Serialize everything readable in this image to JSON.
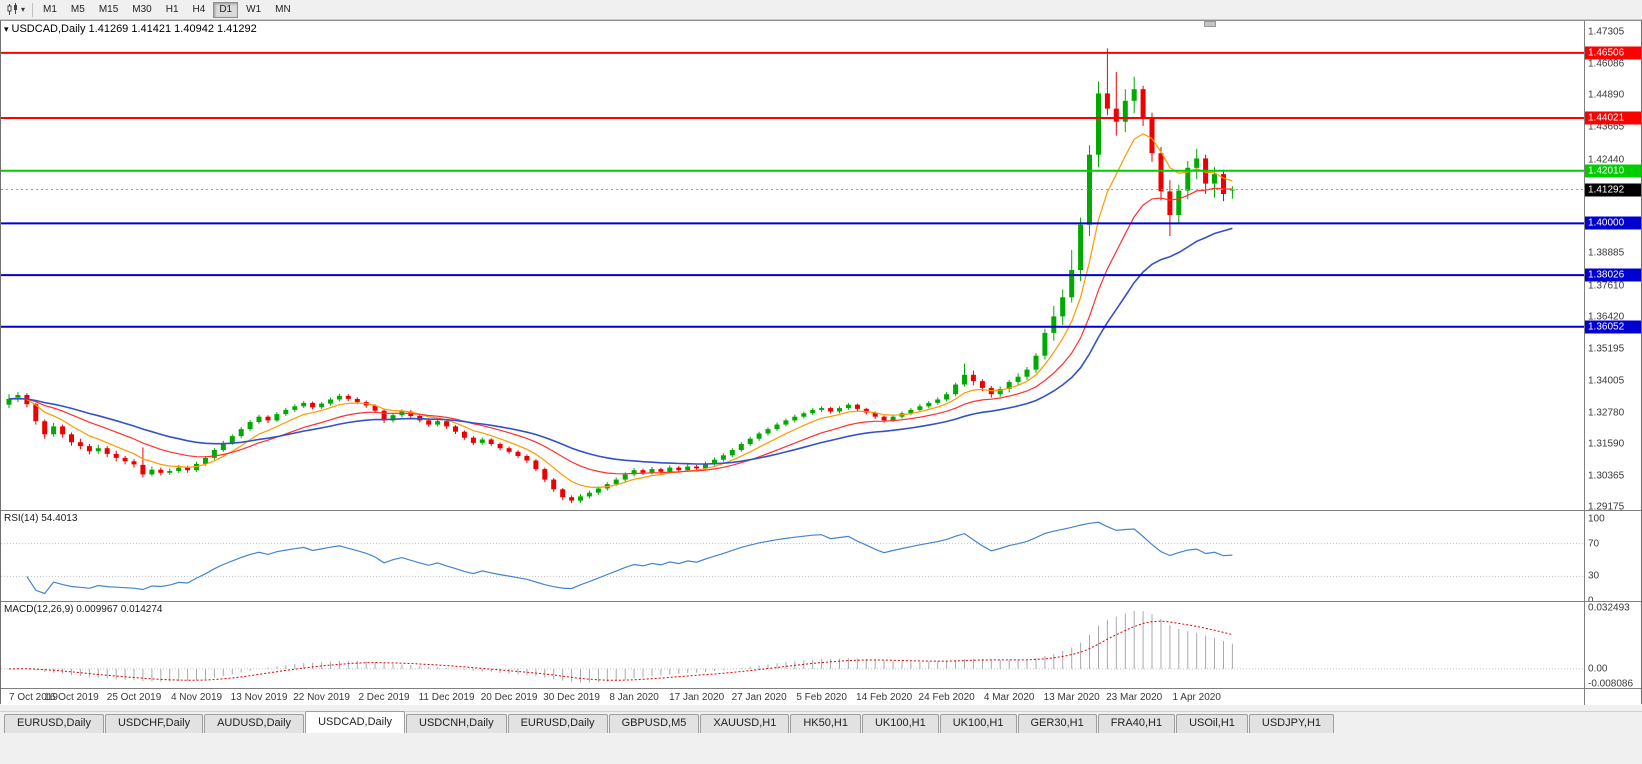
{
  "toolbar": {
    "timeframes": [
      "M1",
      "M5",
      "M15",
      "M30",
      "H1",
      "H4",
      "D1",
      "W1",
      "MN"
    ],
    "active_timeframe": "D1"
  },
  "main_chart": {
    "title": "USDCAD,Daily 1.41269 1.41421 1.40942 1.41292",
    "y_range": {
      "top": 1.47305,
      "bottom": 1.29175
    },
    "axis_labels": [
      "1.47305",
      "1.46086",
      "1.44890",
      "1.43665",
      "1.42440",
      "1.38885",
      "1.37610",
      "1.36420",
      "1.35195",
      "1.34005",
      "1.32780",
      "1.31590",
      "1.30365",
      "1.29175"
    ],
    "hlines": [
      {
        "label": "1.46506",
        "price": 1.46506,
        "color": "#FF0000",
        "kind": "resistance"
      },
      {
        "label": "1.44021",
        "price": 1.44021,
        "color": "#FF0000",
        "kind": "resistance"
      },
      {
        "label": "1.42010",
        "price": 1.4201,
        "color": "#00CC00",
        "kind": "pivot"
      },
      {
        "label": "1.40000",
        "price": 1.4,
        "color": "#0000D0",
        "kind": "support"
      },
      {
        "label": "1.38026",
        "price": 1.38026,
        "color": "#0000D0",
        "kind": "support"
      },
      {
        "label": "1.36052",
        "price": 1.36052,
        "color": "#0000D0",
        "kind": "support"
      }
    ],
    "current_price": {
      "label": "1.41292",
      "price": 1.41292,
      "color": "#000000"
    }
  },
  "chart_data": {
    "type": "candlestick",
    "symbol": "USDCAD",
    "timeframe": "Daily",
    "last_bar": {
      "open": "1.41269",
      "high": "1.41421",
      "low": "1.40942",
      "close": "1.41292"
    },
    "colors": {
      "up": "#00AA00",
      "down": "#EE0000"
    },
    "x_label_step_bars": 7,
    "x_labels": [
      "7 Oct 2019",
      "16 Oct 2019",
      "25 Oct 2019",
      "4 Nov 2019",
      "13 Nov 2019",
      "22 Nov 2019",
      "2 Dec 2019",
      "11 Dec 2019",
      "20 Dec 2019",
      "30 Dec 2019",
      "8 Jan 2020",
      "17 Jan 2020",
      "27 Jan 2020",
      "5 Feb 2020",
      "14 Feb 2020",
      "24 Feb 2020",
      "4 Mar 2020",
      "13 Mar 2020",
      "23 Mar 2020",
      "1 Apr 2020"
    ],
    "ohlc": [
      [
        1.3308,
        1.3348,
        1.3295,
        1.333
      ],
      [
        1.333,
        1.3356,
        1.3318,
        1.3345
      ],
      [
        1.3345,
        1.3352,
        1.3298,
        1.331
      ],
      [
        1.331,
        1.3315,
        1.3232,
        1.3245
      ],
      [
        1.3245,
        1.3252,
        1.3178,
        1.3195
      ],
      [
        1.3195,
        1.3238,
        1.3186,
        1.3225
      ],
      [
        1.3225,
        1.3232,
        1.3182,
        1.3195
      ],
      [
        1.3195,
        1.3202,
        1.3152,
        1.3165
      ],
      [
        1.3165,
        1.3178,
        1.3138,
        1.315
      ],
      [
        1.315,
        1.3158,
        1.3118,
        1.313
      ],
      [
        1.313,
        1.3155,
        1.312,
        1.3142
      ],
      [
        1.3142,
        1.315,
        1.3108,
        1.312
      ],
      [
        1.312,
        1.3132,
        1.3092,
        1.3105
      ],
      [
        1.3105,
        1.3112,
        1.308,
        1.3092
      ],
      [
        1.3092,
        1.31,
        1.3068,
        1.308
      ],
      [
        1.3078,
        1.3145,
        1.303,
        1.3042
      ],
      [
        1.3042,
        1.3072,
        1.3035,
        1.306
      ],
      [
        1.306,
        1.3068,
        1.3038,
        1.3048
      ],
      [
        1.3048,
        1.3065,
        1.304,
        1.3055
      ],
      [
        1.3055,
        1.3078,
        1.3048,
        1.3068
      ],
      [
        1.3068,
        1.3075,
        1.3048,
        1.3058
      ],
      [
        1.3058,
        1.309,
        1.3052,
        1.3082
      ],
      [
        1.3082,
        1.3112,
        1.3075,
        1.3105
      ],
      [
        1.3105,
        1.3142,
        1.3098,
        1.3135
      ],
      [
        1.3135,
        1.317,
        1.3128,
        1.3162
      ],
      [
        1.3162,
        1.3195,
        1.3155,
        1.3188
      ],
      [
        1.3188,
        1.3222,
        1.318,
        1.3215
      ],
      [
        1.3215,
        1.325,
        1.3208,
        1.3242
      ],
      [
        1.3242,
        1.327,
        1.3235,
        1.3262
      ],
      [
        1.3262,
        1.3268,
        1.3238,
        1.3248
      ],
      [
        1.3248,
        1.328,
        1.3242,
        1.3272
      ],
      [
        1.3272,
        1.3295,
        1.3265,
        1.3288
      ],
      [
        1.3288,
        1.331,
        1.328,
        1.3302
      ],
      [
        1.3302,
        1.3322,
        1.3295,
        1.3315
      ],
      [
        1.3315,
        1.332,
        1.329,
        1.3298
      ],
      [
        1.3298,
        1.3318,
        1.3292,
        1.3312
      ],
      [
        1.3312,
        1.3335,
        1.3305,
        1.3328
      ],
      [
        1.3328,
        1.335,
        1.332,
        1.3342
      ],
      [
        1.3342,
        1.3348,
        1.3322,
        1.333
      ],
      [
        1.333,
        1.3336,
        1.331,
        1.3318
      ],
      [
        1.3318,
        1.3324,
        1.3296,
        1.3305
      ],
      [
        1.3305,
        1.331,
        1.3276,
        1.3285
      ],
      [
        1.3285,
        1.329,
        1.3238,
        1.3248
      ],
      [
        1.3248,
        1.3275,
        1.324,
        1.3268
      ],
      [
        1.3268,
        1.329,
        1.326,
        1.3282
      ],
      [
        1.3282,
        1.3288,
        1.3256,
        1.3265
      ],
      [
        1.3265,
        1.327,
        1.324,
        1.3248
      ],
      [
        1.3248,
        1.3254,
        1.3224,
        1.3232
      ],
      [
        1.3232,
        1.3252,
        1.3225,
        1.3245
      ],
      [
        1.3245,
        1.325,
        1.3216,
        1.3225
      ],
      [
        1.3225,
        1.323,
        1.3196,
        1.3205
      ],
      [
        1.3205,
        1.321,
        1.3174,
        1.3182
      ],
      [
        1.3182,
        1.3188,
        1.3154,
        1.3162
      ],
      [
        1.3162,
        1.3182,
        1.3155,
        1.3175
      ],
      [
        1.3175,
        1.318,
        1.315,
        1.3158
      ],
      [
        1.3158,
        1.3164,
        1.3134,
        1.3142
      ],
      [
        1.3142,
        1.3148,
        1.312,
        1.3128
      ],
      [
        1.3128,
        1.3134,
        1.3104,
        1.3112
      ],
      [
        1.3112,
        1.3118,
        1.3086,
        1.3095
      ],
      [
        1.3095,
        1.31,
        1.3054,
        1.3062
      ],
      [
        1.3062,
        1.3068,
        1.3012,
        1.3022
      ],
      [
        1.3022,
        1.3028,
        1.2975,
        1.2985
      ],
      [
        1.2985,
        1.299,
        1.2944,
        1.2955
      ],
      [
        1.2955,
        1.2962,
        1.2932,
        1.2942
      ],
      [
        1.2942,
        1.2966,
        1.2934,
        1.2958
      ],
      [
        1.2958,
        1.298,
        1.295,
        1.2972
      ],
      [
        1.2972,
        1.2996,
        1.2964,
        1.2988
      ],
      [
        1.2988,
        1.3012,
        1.298,
        1.3005
      ],
      [
        1.3005,
        1.303,
        1.2998,
        1.3022
      ],
      [
        1.3022,
        1.305,
        1.3015,
        1.3042
      ],
      [
        1.3042,
        1.3066,
        1.3035,
        1.3058
      ],
      [
        1.3058,
        1.3064,
        1.304,
        1.3048
      ],
      [
        1.3048,
        1.307,
        1.3042,
        1.3062
      ],
      [
        1.3062,
        1.3068,
        1.3044,
        1.3052
      ],
      [
        1.3052,
        1.3076,
        1.3046,
        1.3068
      ],
      [
        1.3068,
        1.3074,
        1.305,
        1.3058
      ],
      [
        1.3058,
        1.308,
        1.3052,
        1.3072
      ],
      [
        1.3072,
        1.3078,
        1.3058,
        1.3065
      ],
      [
        1.3065,
        1.309,
        1.3058,
        1.3082
      ],
      [
        1.3082,
        1.3106,
        1.3075,
        1.3098
      ],
      [
        1.3098,
        1.3122,
        1.309,
        1.3115
      ],
      [
        1.3115,
        1.3142,
        1.3108,
        1.3135
      ],
      [
        1.3135,
        1.3165,
        1.3128,
        1.3158
      ],
      [
        1.3158,
        1.3185,
        1.315,
        1.3178
      ],
      [
        1.3178,
        1.3205,
        1.317,
        1.3198
      ],
      [
        1.3198,
        1.3222,
        1.319,
        1.3215
      ],
      [
        1.3215,
        1.324,
        1.3208,
        1.3232
      ],
      [
        1.3232,
        1.3255,
        1.3225,
        1.3248
      ],
      [
        1.3248,
        1.327,
        1.324,
        1.3262
      ],
      [
        1.3262,
        1.3282,
        1.3255,
        1.3275
      ],
      [
        1.3275,
        1.3295,
        1.3268,
        1.3288
      ],
      [
        1.3288,
        1.3302,
        1.328,
        1.3295
      ],
      [
        1.3295,
        1.33,
        1.3274,
        1.3282
      ],
      [
        1.3282,
        1.3302,
        1.3275,
        1.3295
      ],
      [
        1.3295,
        1.3315,
        1.3288,
        1.3308
      ],
      [
        1.3308,
        1.3312,
        1.3284,
        1.3292
      ],
      [
        1.3292,
        1.3296,
        1.327,
        1.3278
      ],
      [
        1.3278,
        1.3282,
        1.3254,
        1.3262
      ],
      [
        1.3262,
        1.3266,
        1.324,
        1.3248
      ],
      [
        1.3248,
        1.327,
        1.3242,
        1.3262
      ],
      [
        1.3262,
        1.3282,
        1.3255,
        1.3275
      ],
      [
        1.3275,
        1.3295,
        1.3268,
        1.3288
      ],
      [
        1.3288,
        1.331,
        1.328,
        1.3302
      ],
      [
        1.3302,
        1.3322,
        1.3294,
        1.3315
      ],
      [
        1.3315,
        1.3336,
        1.3308,
        1.3328
      ],
      [
        1.3328,
        1.3356,
        1.332,
        1.3348
      ],
      [
        1.3348,
        1.3392,
        1.334,
        1.3385
      ],
      [
        1.3385,
        1.3465,
        1.3378,
        1.3422
      ],
      [
        1.3422,
        1.3438,
        1.3382,
        1.3398
      ],
      [
        1.3398,
        1.3405,
        1.336,
        1.3372
      ],
      [
        1.3372,
        1.338,
        1.3335,
        1.3348
      ],
      [
        1.3348,
        1.3378,
        1.3338,
        1.3368
      ],
      [
        1.3368,
        1.3402,
        1.3355,
        1.3395
      ],
      [
        1.3395,
        1.3428,
        1.3382,
        1.3415
      ],
      [
        1.3415,
        1.3452,
        1.3402,
        1.3442
      ],
      [
        1.3442,
        1.3505,
        1.343,
        1.3495
      ],
      [
        1.3495,
        1.3598,
        1.348,
        1.3582
      ],
      [
        1.3582,
        1.3685,
        1.3552,
        1.3645
      ],
      [
        1.3645,
        1.3748,
        1.3612,
        1.3718
      ],
      [
        1.3718,
        1.3898,
        1.3698,
        1.3822
      ],
      [
        1.3822,
        1.4022,
        1.378,
        1.3995
      ],
      [
        1.3995,
        1.4298,
        1.3952,
        1.4262
      ],
      [
        1.4262,
        1.4542,
        1.4214,
        1.4496
      ],
      [
        1.4496,
        1.4668,
        1.4412,
        1.4438
      ],
      [
        1.4438,
        1.4578,
        1.4335,
        1.4388
      ],
      [
        1.4388,
        1.4512,
        1.4348,
        1.4468
      ],
      [
        1.4468,
        1.456,
        1.442,
        1.4512
      ],
      [
        1.4512,
        1.4525,
        1.4372,
        1.4405
      ],
      [
        1.4405,
        1.4422,
        1.4235,
        1.4268
      ],
      [
        1.4268,
        1.4292,
        1.4088,
        1.4122
      ],
      [
        1.4122,
        1.4165,
        1.3952,
        1.4032
      ],
      [
        1.4032,
        1.4148,
        1.3998,
        1.4125
      ],
      [
        1.4125,
        1.4238,
        1.4092,
        1.4212
      ],
      [
        1.4212,
        1.4285,
        1.4168,
        1.4248
      ],
      [
        1.4248,
        1.4262,
        1.4112,
        1.4152
      ],
      [
        1.4152,
        1.4215,
        1.4098,
        1.4188
      ],
      [
        1.4188,
        1.4205,
        1.4085,
        1.4112
      ],
      [
        1.41269,
        1.41421,
        1.40942,
        1.41292
      ]
    ],
    "moving_averages": [
      {
        "name": "fast",
        "period": 7,
        "color": "#FF9900"
      },
      {
        "name": "medium",
        "period": 16,
        "color": "#FF3030"
      },
      {
        "name": "slow",
        "period": 30,
        "color": "#3352C8"
      }
    ],
    "indicators": [
      {
        "type": "rsi",
        "label": "RSI(14) 54.4013",
        "period": 14,
        "range": [
          0,
          100
        ],
        "levels": [
          70,
          30
        ],
        "axis": [
          "100",
          "70",
          "30",
          "0"
        ],
        "color": "#4585CE"
      },
      {
        "type": "macd",
        "label": "MACD(12,26,9) 0.009967 0.014274",
        "fast": 12,
        "slow": 26,
        "signal": 9,
        "range": [
          -0.008086,
          0.032493
        ],
        "axis": [
          "0.032493",
          "0.00",
          "-0.008086"
        ],
        "histogram_color": "#A9A9A9",
        "signal_color": "#DD0000"
      }
    ]
  },
  "tabs": {
    "items": [
      "EURUSD,Daily",
      "USDCHF,Daily",
      "AUDUSD,Daily",
      "USDCAD,Daily",
      "USDCNH,Daily",
      "EURUSD,Daily",
      "GBPUSD,M5",
      "XAUUSD,H1",
      "HK50,H1",
      "UK100,H1",
      "UK100,H1",
      "GER30,H1",
      "FRA40,H1",
      "USOil,H1",
      "USDJPY,H1"
    ],
    "active_index": 3
  }
}
